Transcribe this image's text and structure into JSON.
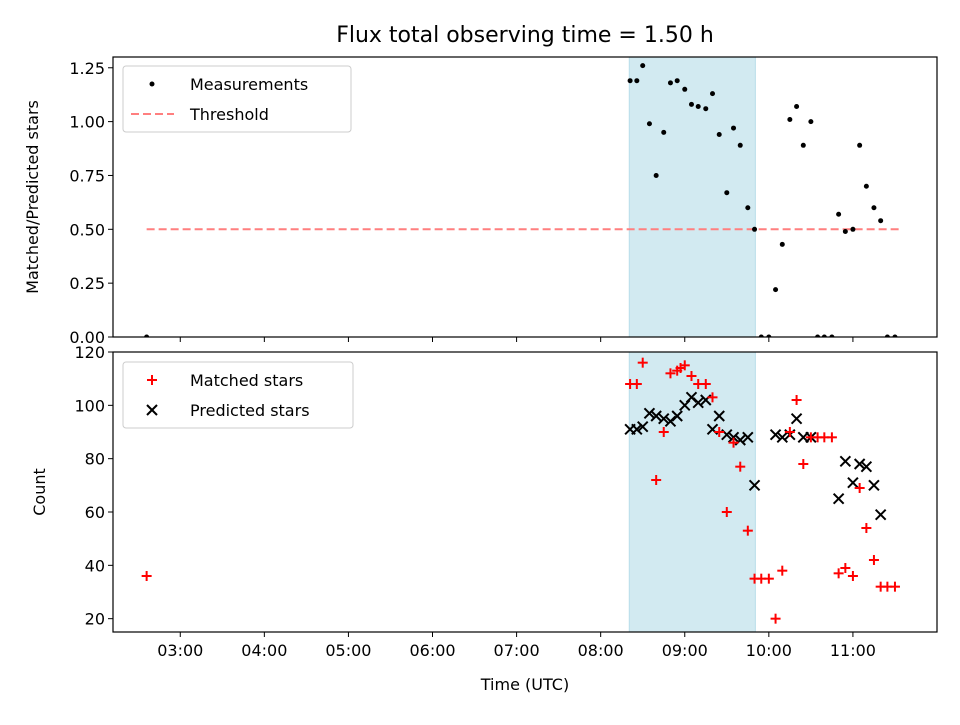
{
  "chart_data": [
    {
      "type": "scatter",
      "title": "Flux total observing time = 1.50 h",
      "xlabel": "",
      "ylabel": "Matched/Predicted stars",
      "ylim": [
        0,
        1.3
      ],
      "yticks": [
        "0.00",
        "0.25",
        "0.50",
        "0.75",
        "1.00",
        "1.25"
      ],
      "yticks_values": [
        0,
        0.25,
        0.5,
        0.75,
        1.0,
        1.25
      ],
      "legend_position": "top-left",
      "shaded_interval": {
        "x_start": 8.34,
        "x_end": 9.84,
        "color": "#add8e6"
      },
      "series": [
        {
          "name": "Measurements",
          "marker": "dot",
          "color": "#000000",
          "x": [
            2.6,
            8.35,
            8.43,
            8.5,
            8.58,
            8.66,
            8.75,
            8.83,
            8.91,
            9.0,
            9.08,
            9.16,
            9.25,
            9.33,
            9.41,
            9.5,
            9.58,
            9.66,
            9.75,
            9.83,
            9.91,
            10.0,
            10.08,
            10.16,
            10.25,
            10.33,
            10.41,
            10.5,
            10.58,
            10.66,
            10.75,
            10.83,
            10.91,
            11.0,
            11.08,
            11.16,
            11.25,
            11.33,
            11.41,
            11.5
          ],
          "y": [
            0.0,
            1.19,
            1.19,
            1.26,
            0.99,
            0.75,
            0.95,
            1.18,
            1.19,
            1.15,
            1.08,
            1.07,
            1.06,
            1.13,
            0.94,
            0.67,
            0.97,
            0.89,
            0.6,
            0.5,
            0.0,
            0.0,
            0.22,
            0.43,
            1.01,
            1.07,
            0.89,
            1.0,
            0.0,
            0.0,
            0.0,
            0.57,
            0.49,
            0.5,
            0.89,
            0.7,
            0.6,
            0.54,
            0.0,
            0.0
          ]
        },
        {
          "name": "Threshold",
          "marker": "dashed-line",
          "color": "#ff7f7f",
          "x": [
            2.6,
            11.55
          ],
          "y": [
            0.5,
            0.5
          ]
        }
      ]
    },
    {
      "type": "scatter",
      "title": "",
      "xlabel": "Time (UTC)",
      "ylabel": "Count",
      "ylim": [
        15,
        120
      ],
      "yticks": [
        "20",
        "40",
        "60",
        "80",
        "100",
        "120"
      ],
      "yticks_values": [
        20,
        40,
        60,
        80,
        100,
        120
      ],
      "xlim": [
        2.2,
        12.0
      ],
      "xticks": [
        "03:00",
        "04:00",
        "05:00",
        "06:00",
        "07:00",
        "08:00",
        "09:00",
        "10:00",
        "11:00"
      ],
      "xticks_values": [
        3,
        4,
        5,
        6,
        7,
        8,
        9,
        10,
        11
      ],
      "legend_position": "top-left",
      "shaded_interval": {
        "x_start": 8.34,
        "x_end": 9.84,
        "color": "#add8e6"
      },
      "series": [
        {
          "name": "Matched stars",
          "marker": "plus",
          "color": "#ff0000",
          "x": [
            2.6,
            8.35,
            8.43,
            8.5,
            8.66,
            8.75,
            8.83,
            8.91,
            8.95,
            9.0,
            9.08,
            9.16,
            9.25,
            9.33,
            9.41,
            9.5,
            9.58,
            9.66,
            9.75,
            9.83,
            9.91,
            10.0,
            10.08,
            10.16,
            10.25,
            10.33,
            10.41,
            10.5,
            10.58,
            10.66,
            10.75,
            10.83,
            10.91,
            11.0,
            11.08,
            11.16,
            11.25,
            11.33,
            11.41,
            11.5
          ],
          "y": [
            36,
            108,
            108,
            116,
            72,
            90,
            112,
            113,
            114,
            115,
            111,
            108,
            108,
            103,
            90,
            60,
            86,
            77,
            53,
            35,
            35,
            35,
            20,
            38,
            90,
            102,
            78,
            88,
            88,
            88,
            88,
            37,
            39,
            36,
            69,
            54,
            42,
            32,
            32,
            32
          ]
        },
        {
          "name": "Predicted stars",
          "marker": "x",
          "color": "#000000",
          "x": [
            8.35,
            8.43,
            8.5,
            8.58,
            8.66,
            8.75,
            8.83,
            8.91,
            9.0,
            9.08,
            9.16,
            9.25,
            9.33,
            9.41,
            9.5,
            9.58,
            9.66,
            9.75,
            9.83,
            10.08,
            10.16,
            10.25,
            10.33,
            10.41,
            10.5,
            10.83,
            10.91,
            11.0,
            11.08,
            11.16,
            11.25,
            11.33
          ],
          "y": [
            91,
            91,
            92,
            97,
            96,
            95,
            94,
            96,
            100,
            103,
            101,
            102,
            91,
            96,
            89,
            88,
            87,
            88,
            70,
            89,
            88,
            89,
            95,
            88,
            88,
            65,
            79,
            71,
            78,
            77,
            70,
            59
          ]
        }
      ]
    }
  ]
}
